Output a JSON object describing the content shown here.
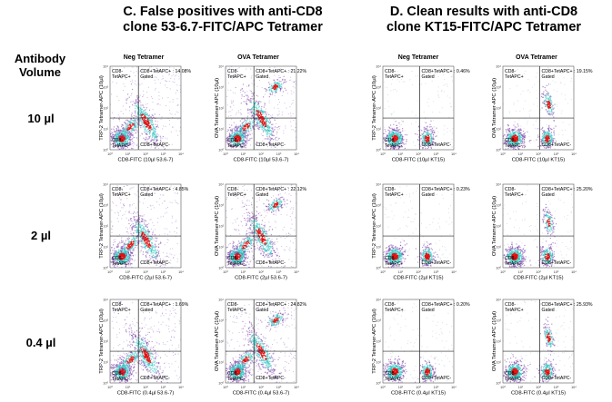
{
  "panels": [
    {
      "title_line1": "C. False positives with anti-CD8",
      "title_line2": "clone 53-6.7-FITC/APC Tetramer"
    },
    {
      "title_line1": "D. Clean results with anti-CD8",
      "title_line2": "clone KT15-FITC/APC Tetramer"
    }
  ],
  "antibody_header": {
    "line1": "Antibody",
    "line2": "Volume"
  },
  "rows": [
    "10 µl",
    "2 µl",
    "0.4 µl"
  ],
  "col_headers": [
    "Neg Tetramer",
    "OVA Tetramer",
    "Neg Tetramer",
    "OVA Tetramer"
  ],
  "colors": {
    "low": "#7a3fa8",
    "mid": "#27c3c0",
    "high": "#e01212",
    "gate": "#222222"
  },
  "chart_data": {
    "type": "scatter",
    "axis_ticks": [
      "10⁰",
      "10¹",
      "10²",
      "10³",
      "10⁴"
    ],
    "plots": [
      {
        "row": 0,
        "col": 0,
        "xlabel": "CD8-FITC (10µl 53.6-7)",
        "ylabel": "TRP-2 Tetramer-APC (10µl)",
        "q_ul": "CD8-TetAPC+",
        "q_ur": "CD8+TetAPC+ : 14.08% Gated",
        "q_ll": "CD8-TetAPC-",
        "q_lr": "CD8+TetAPC-",
        "gated_percent": 14.08
      },
      {
        "row": 0,
        "col": 1,
        "xlabel": "CD8-FITC (10µl 53.6-7)",
        "ylabel": "OVA Tetramer-APC (10µl)",
        "q_ul": "CD8-TetAPC+",
        "q_ur": "CD8+TetAPC+ : 21.22% Gated",
        "q_ll": "CD8-TetAPC-",
        "q_lr": "CD8+TetAPC-",
        "gated_percent": 21.22
      },
      {
        "row": 0,
        "col": 2,
        "xlabel": "CD8-FITC (10µl KT15)",
        "ylabel": "TRP-2 Tetramer-APC (10µl)",
        "q_ul": "CD8-TetAPC+",
        "q_ur": "CD8+TetAPC+ : 0.46% Gated",
        "q_ll": "CD8-TetAPC-",
        "q_lr": "CD8+TetAPC-",
        "gated_percent": 0.46
      },
      {
        "row": 0,
        "col": 3,
        "xlabel": "CD8-FITC (10µl KT15)",
        "ylabel": "OVA Tetramer-APC (10µl)",
        "q_ul": "CD8-TetAPC+",
        "q_ur": "CD8+TetAPC+ : 19.15% Gated",
        "q_ll": "CD8-TetAPC-",
        "q_lr": "CD8+TetAPC-",
        "gated_percent": 19.15
      },
      {
        "row": 1,
        "col": 0,
        "xlabel": "CD8-FITC (2µl 53.6-7)",
        "ylabel": "TRP-2 Tetramer-APC (10µl)",
        "q_ul": "CD8-TetAPC+",
        "q_ur": "CD8+TetAPC+ : 4.85% Gated",
        "q_ll": "CD8-TetAPC-",
        "q_lr": "CD8+TetAPC-",
        "gated_percent": 4.85
      },
      {
        "row": 1,
        "col": 1,
        "xlabel": "CD8-FITC (2µl 53.6-7)",
        "ylabel": "OVA Tetramer-APC (10µl)",
        "q_ul": "CD8-TetAPC+",
        "q_ur": "CD8+TetAPC+ : 22.12% Gated",
        "q_ll": "CD8-TetAPC-",
        "q_lr": "CD8+TetAPC-",
        "gated_percent": 22.12
      },
      {
        "row": 1,
        "col": 2,
        "xlabel": "CD8-FITC (2µl KT15)",
        "ylabel": "TRP-2 Tetramer-APC (10µl)",
        "q_ul": "CD8-TetAPC+",
        "q_ur": "CD8+TetAPC+ : 0.23% Gated",
        "q_ll": "CD8-TetAPC-",
        "q_lr": "CD8+TetAPC-",
        "gated_percent": 0.23
      },
      {
        "row": 1,
        "col": 3,
        "xlabel": "CD8-FITC (2µl KT15)",
        "ylabel": "OVA Tetramer-APC (10µl)",
        "q_ul": "CD8-TetAPC+",
        "q_ur": "CD8+TetAPC+ : 25.20% Gated",
        "q_ll": "CD8-TetAPC-",
        "q_lr": "CD8+TetAPC-",
        "gated_percent": 25.2
      },
      {
        "row": 2,
        "col": 0,
        "xlabel": "CD8-FITC (0.4µl 53.6-7)",
        "ylabel": "TRP-2 Tetramer-APC (10µl)",
        "q_ul": "CD8-TetAPC+",
        "q_ur": "CD8+TetAPC+ : 1.69% Gated",
        "q_ll": "CD8-TetAPC-",
        "q_lr": "CD8+TetAPC-",
        "gated_percent": 1.69
      },
      {
        "row": 2,
        "col": 1,
        "xlabel": "CD8-FITC (0.4µl 53.6-7)",
        "ylabel": "OVA Tetramer-APC (10µl)",
        "q_ul": "CD8-TetAPC+",
        "q_ur": "CD8+TetAPC+ : 24.82% Gated",
        "q_ll": "CD8-TetAPC-",
        "q_lr": "CD8+TetAPC-",
        "gated_percent": 24.82
      },
      {
        "row": 2,
        "col": 2,
        "xlabel": "CD8-FITC (0.4µl KT15)",
        "ylabel": "TRP-2 Tetramer-APC (10µl)",
        "q_ul": "CD8-TetAPC+",
        "q_ur": "CD8+TetAPC+ : 0.20% Gated",
        "q_ll": "CD8-TetAPC-",
        "q_lr": "CD8+TetAPC-",
        "gated_percent": 0.2
      },
      {
        "row": 2,
        "col": 3,
        "xlabel": "CD8-FITC (0.4µl KT15)",
        "ylabel": "OVA Tetramer-APC (10µl)",
        "q_ul": "CD8-TetAPC+",
        "q_ur": "CD8+TetAPC+ : 25.93% Gated",
        "q_ll": "CD8-TetAPC-",
        "q_lr": "CD8+TetAPC-",
        "gated_percent": 25.93
      }
    ]
  }
}
